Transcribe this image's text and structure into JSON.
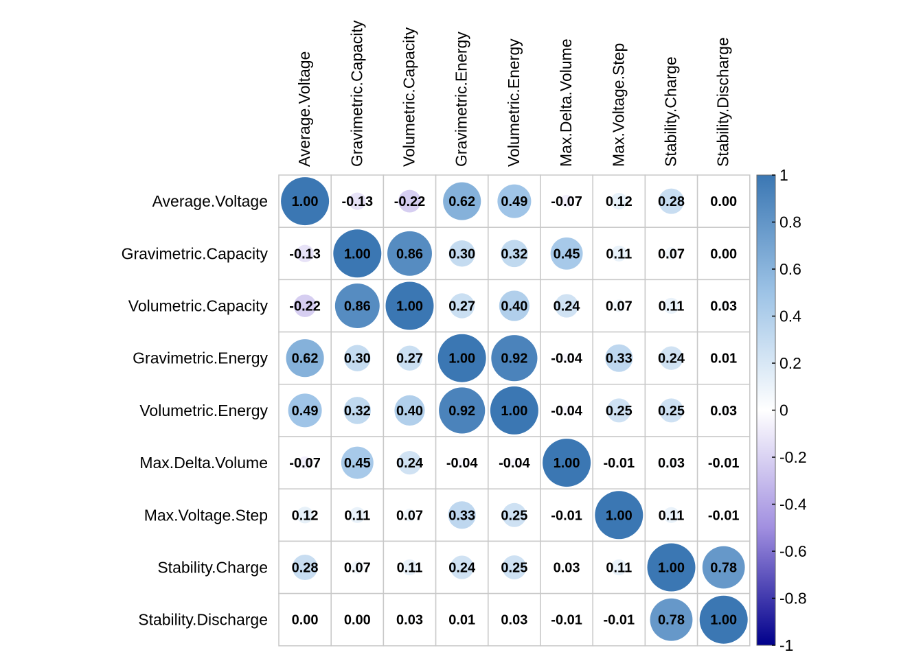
{
  "chart_data": {
    "type": "heatmap",
    "variables": [
      "Average.Voltage",
      "Gravimetric.Capacity",
      "Volumetric.Capacity",
      "Gravimetric.Energy",
      "Volumetric.Energy",
      "Max.Delta.Volume",
      "Max.Voltage.Step",
      "Stability.Charge",
      "Stability.Discharge"
    ],
    "matrix": [
      [
        1.0,
        -0.13,
        -0.22,
        0.62,
        0.49,
        -0.07,
        0.12,
        0.28,
        0.0
      ],
      [
        -0.13,
        1.0,
        0.86,
        0.3,
        0.32,
        0.45,
        0.11,
        0.07,
        0.0
      ],
      [
        -0.22,
        0.86,
        1.0,
        0.27,
        0.4,
        0.24,
        0.07,
        0.11,
        0.03
      ],
      [
        0.62,
        0.3,
        0.27,
        1.0,
        0.92,
        -0.04,
        0.33,
        0.24,
        0.01
      ],
      [
        0.49,
        0.32,
        0.4,
        0.92,
        1.0,
        -0.04,
        0.25,
        0.25,
        0.03
      ],
      [
        -0.07,
        0.45,
        0.24,
        -0.04,
        -0.04,
        1.0,
        -0.01,
        0.03,
        -0.01
      ],
      [
        0.12,
        0.11,
        0.07,
        0.33,
        0.25,
        -0.01,
        1.0,
        0.11,
        -0.01
      ],
      [
        0.28,
        0.07,
        0.11,
        0.24,
        0.25,
        0.03,
        0.11,
        1.0,
        0.78
      ],
      [
        0.0,
        0.0,
        0.03,
        0.01,
        0.03,
        -0.01,
        -0.01,
        0.78,
        1.0
      ]
    ],
    "value_labels": [
      [
        "1.00",
        "-0.13",
        "-0.22",
        "0.62",
        "0.49",
        "-0.07",
        "0.12",
        "0.28",
        "0.00"
      ],
      [
        "-0.13",
        "1.00",
        "0.86",
        "0.30",
        "0.32",
        "0.45",
        "0.11",
        "0.07",
        "0.00"
      ],
      [
        "-0.22",
        "0.86",
        "1.00",
        "0.27",
        "0.40",
        "0.24",
        "0.07",
        "0.11",
        "0.03"
      ],
      [
        "0.62",
        "0.30",
        "0.27",
        "1.00",
        "0.92",
        "-0.04",
        "0.33",
        "0.24",
        "0.01"
      ],
      [
        "0.49",
        "0.32",
        "0.40",
        "0.92",
        "1.00",
        "-0.04",
        "0.25",
        "0.25",
        "0.03"
      ],
      [
        "-0.07",
        "0.45",
        "0.24",
        "-0.04",
        "-0.04",
        "1.00",
        "-0.01",
        "0.03",
        "-0.01"
      ],
      [
        "0.12",
        "0.11",
        "0.07",
        "0.33",
        "0.25",
        "-0.01",
        "1.00",
        "0.11",
        "-0.01"
      ],
      [
        "0.28",
        "0.07",
        "0.11",
        "0.24",
        "0.25",
        "0.03",
        "0.11",
        "1.00",
        "0.78"
      ],
      [
        "0.00",
        "0.00",
        "0.03",
        "0.01",
        "0.03",
        "-0.01",
        "-0.01",
        "0.78",
        "1.00"
      ]
    ],
    "colorbar": {
      "range": [
        -1,
        1
      ],
      "ticks": [
        1,
        0.8,
        0.6,
        0.4,
        0.2,
        0,
        -0.2,
        -0.4,
        -0.6,
        -0.8,
        -1
      ],
      "tick_labels": [
        "1",
        "0.8",
        "0.6",
        "0.4",
        "0.2",
        "0",
        "-0.2",
        "-0.4",
        "-0.6",
        "-0.8",
        "-1"
      ],
      "colors": {
        "negative_end": "#00008B",
        "negative_mid": "#A18FE0",
        "zero": "#FFFFFF",
        "positive_mid": "#9DC3E6",
        "positive_end": "#3B77B3"
      }
    },
    "grid": true,
    "grid_color": "#C8C8C8",
    "marker": "circle",
    "title": "",
    "xlabel": "",
    "ylabel": ""
  }
}
